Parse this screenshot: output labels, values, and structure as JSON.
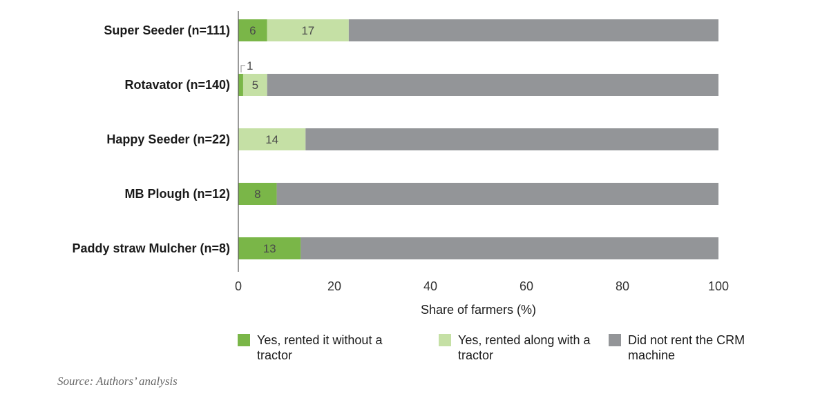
{
  "chart_data": {
    "type": "bar",
    "orientation": "horizontal",
    "stacked": true,
    "xlabel": "Share of farmers (%)",
    "xlim": [
      0,
      100
    ],
    "xticks": [
      0,
      20,
      40,
      60,
      80,
      100
    ],
    "categories": [
      "Super Seeder (n=111)",
      "Rotavator (n=140)",
      "Happy Seeder (n=22)",
      "MB Plough (n=12)",
      "Paddy straw Mulcher (n=8)"
    ],
    "series": [
      {
        "name": "Yes, rented it without a tractor",
        "color": "#7ab648",
        "values": [
          6,
          1,
          0,
          8,
          13
        ],
        "labels": [
          "6",
          "1",
          "",
          "8",
          "13"
        ]
      },
      {
        "name": "Yes, rented along with a tractor",
        "color": "#c5e0a5",
        "values": [
          17,
          5,
          14,
          0,
          0
        ],
        "labels": [
          "17",
          "5",
          "14",
          "",
          ""
        ]
      },
      {
        "name": "Did not rent the CRM machine",
        "color": "#939598",
        "values": [
          77,
          94,
          86,
          92,
          87
        ],
        "labels": [
          "",
          "",
          "",
          "",
          ""
        ]
      }
    ],
    "legend_position": "bottom",
    "grid": false
  },
  "source_note": "Source: Authors’ analysis"
}
